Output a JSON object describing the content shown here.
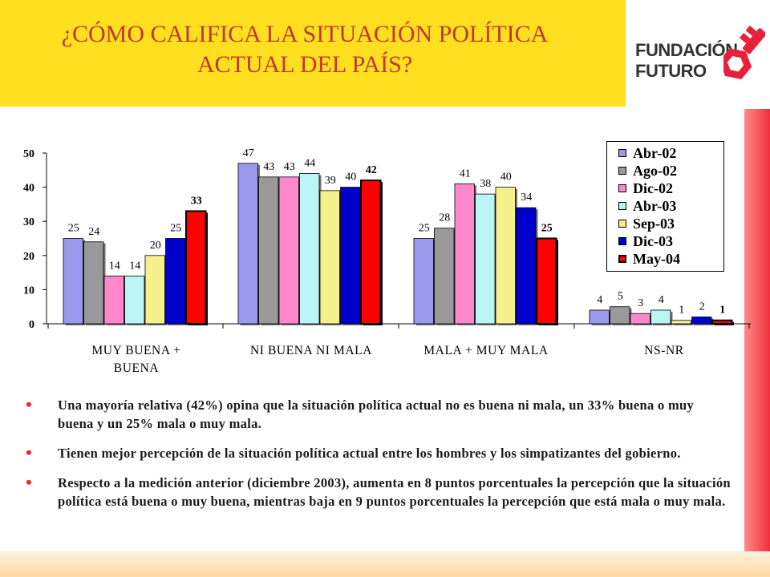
{
  "title": "¿CÓMO CALIFICA LA SITUACIÓN POLÍTICA ACTUAL DEL PAÍS?",
  "logo": {
    "line1": "FUNDACIÓN",
    "line2": "FUTURO",
    "mark": "key-logo-icon"
  },
  "colors": {
    "title_bg": "#ffdf1f",
    "title_text": "#c0392b",
    "accent_strip": "#f0303c",
    "bullet": "#ff2020"
  },
  "chart_data": {
    "type": "bar",
    "categories": [
      "MUY BUENA + BUENA",
      "NI BUENA NI MALA",
      "MALA + MUY MALA",
      "NS-NR"
    ],
    "series": [
      {
        "name": "Abr-02",
        "color": "#9999ee",
        "values": [
          25,
          47,
          25,
          4
        ]
      },
      {
        "name": "Ago-02",
        "color": "#999999",
        "values": [
          24,
          43,
          28,
          5
        ]
      },
      {
        "name": "Dic-02",
        "color": "#ff88cc",
        "values": [
          14,
          43,
          41,
          3
        ]
      },
      {
        "name": "Abr-03",
        "color": "#bbf5f5",
        "values": [
          14,
          44,
          38,
          4
        ]
      },
      {
        "name": "Sep-03",
        "color": "#f5f08c",
        "values": [
          20,
          39,
          40,
          1
        ]
      },
      {
        "name": "Dic-03",
        "color": "#0000cc",
        "values": [
          25,
          40,
          34,
          2
        ]
      },
      {
        "name": "May-04",
        "color": "#ff0000",
        "values": [
          33,
          42,
          25,
          1
        ]
      }
    ],
    "yticks": [
      "0",
      "10",
      "20",
      "30",
      "40",
      "50"
    ],
    "ylim": [
      0,
      50
    ],
    "legend_position": "right",
    "grid": false
  },
  "category_labels": [
    "MUY BUENA +",
    "BUENA",
    "NI BUENA NI MALA",
    "MALA + MUY MALA",
    "NS-NR"
  ],
  "bullets": [
    "Una mayoría relativa (42%) opina que la situación  política actual no es buena ni mala, un 33% buena o muy buena y un 25% mala o muy mala.",
    "Tienen mejor percepción de la situación política actual entre los hombres y los simpatizantes del gobierno.",
    "Respecto a la medición anterior (diciembre 2003), aumenta en 8 puntos porcentuales la percepción que la situación política está buena o muy buena, mientras baja en 9 puntos porcentuales la percepción que está mala o muy mala."
  ]
}
